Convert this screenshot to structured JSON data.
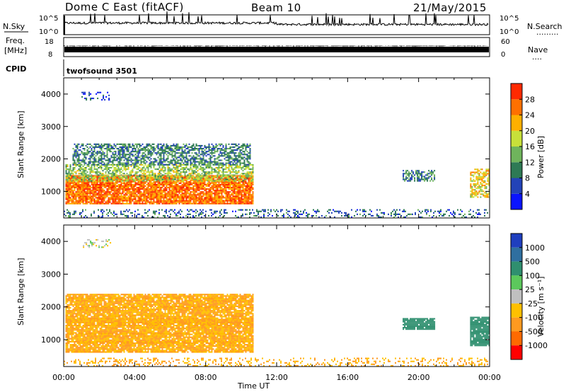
{
  "header": {
    "station": "Dome C East (fitACF)",
    "beam": "Beam 10",
    "date": "21/May/2015"
  },
  "strips": {
    "nsky_label": "N.Sky",
    "nsearch_label": "N.Search",
    "nsearch_dots": ".........",
    "freq_label_line1": "Freq.",
    "freq_label_line2": "[MHz]",
    "nave_label": "Nave",
    "nave_dots": "....",
    "cpid_label": "CPID",
    "cpid_value": "twofsound 3501",
    "nsky_ticks": [
      "10^5",
      "10^0"
    ],
    "nsearch_ticks": [
      "10^5",
      "10^0"
    ],
    "freq_ticks": [
      "18",
      "8"
    ],
    "nave_ticks": [
      "60",
      "0"
    ]
  },
  "chart_data": [
    {
      "type": "heatmap",
      "name": "power",
      "ylabel": "Slant Range [km]",
      "xlabel": "",
      "ylim": [
        180,
        4500
      ],
      "yticks": [
        1000,
        2000,
        3000,
        4000
      ],
      "xticks": [
        "00:00",
        "04:00",
        "08:00",
        "12:00",
        "16:00",
        "20:00",
        "00:00"
      ],
      "xlim_hours": [
        0,
        24
      ],
      "colorbar_label": "Power [dB]",
      "colorbar_ticks": [
        "4",
        "8",
        "12",
        "16",
        "20",
        "24",
        "28"
      ],
      "colorbar_colors": [
        "#0a14ff",
        "#2343b8",
        "#2e7a55",
        "#6fb45c",
        "#c8e03a",
        "#ffb000",
        "#ff7000",
        "#ff2a00"
      ],
      "clusters": [
        {
          "t0": 0.1,
          "t1": 10.7,
          "r0": 600,
          "r1": 1500,
          "value": 26
        },
        {
          "t0": 0.1,
          "t1": 10.7,
          "r0": 1300,
          "r1": 1800,
          "value": 16
        },
        {
          "t0": 0.5,
          "t1": 10.5,
          "r0": 1800,
          "r1": 2450,
          "value": 10
        },
        {
          "t0": 1.0,
          "t1": 2.6,
          "r0": 3800,
          "r1": 4050,
          "value": 6
        },
        {
          "t0": 19.1,
          "t1": 20.9,
          "r0": 1300,
          "r1": 1650,
          "value": 10
        },
        {
          "t0": 22.9,
          "t1": 24.0,
          "r0": 800,
          "r1": 1700,
          "value": 20
        },
        {
          "t0": 0.0,
          "t1": 24.0,
          "r0": 180,
          "r1": 420,
          "value": 8
        }
      ]
    },
    {
      "type": "heatmap",
      "name": "velocity",
      "ylabel": "Slant Range [km]",
      "xlabel": "Time UT",
      "ylim": [
        180,
        4500
      ],
      "yticks": [
        1000,
        2000,
        3000,
        4000
      ],
      "xticks": [
        "00:00",
        "04:00",
        "08:00",
        "12:00",
        "16:00",
        "20:00",
        "00:00"
      ],
      "xlim_hours": [
        0,
        24
      ],
      "colorbar_label": "Velocity [m s⁻¹]",
      "colorbar_ticks": [
        "1000",
        "500",
        "100",
        "25",
        "-25",
        "-100",
        "-500",
        "-1000"
      ],
      "colorbar_colors": [
        "#1f3fbf",
        "#2f6fa0",
        "#2f8f6f",
        "#5cc85c",
        "#c0c0c0",
        "#ffc000",
        "#ff9a20",
        "#ff6a00",
        "#ff0000"
      ],
      "clusters": [
        {
          "t0": 0.1,
          "t1": 10.7,
          "r0": 600,
          "r1": 1600,
          "value": -100
        },
        {
          "t0": 0.1,
          "t1": 10.7,
          "r0": 1500,
          "r1": 2400,
          "value": -100
        },
        {
          "t0": 1.0,
          "t1": 2.6,
          "r0": 3800,
          "r1": 4050,
          "value": 0
        },
        {
          "t0": 19.1,
          "t1": 20.9,
          "r0": 1300,
          "r1": 1650,
          "value": 300
        },
        {
          "t0": 22.9,
          "t1": 24.0,
          "r0": 800,
          "r1": 1700,
          "value": 300
        },
        {
          "t0": 0.0,
          "t1": 24.0,
          "r0": 180,
          "r1": 420,
          "value": -100
        }
      ]
    }
  ]
}
